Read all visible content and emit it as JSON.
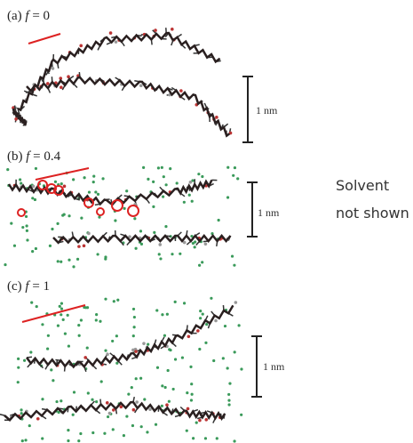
{
  "panels": [
    {
      "tag": "(a)",
      "variable": "f",
      "value": "= 0",
      "scale_label": "1 nm"
    },
    {
      "tag": "(b)",
      "variable": "f",
      "value": "= 0.4",
      "scale_label": "1 nm"
    },
    {
      "tag": "(c)",
      "variable": "f",
      "value": "= 1",
      "scale_label": "1 nm"
    }
  ],
  "note": {
    "line1": "Solvent",
    "line2": "not shown"
  }
}
